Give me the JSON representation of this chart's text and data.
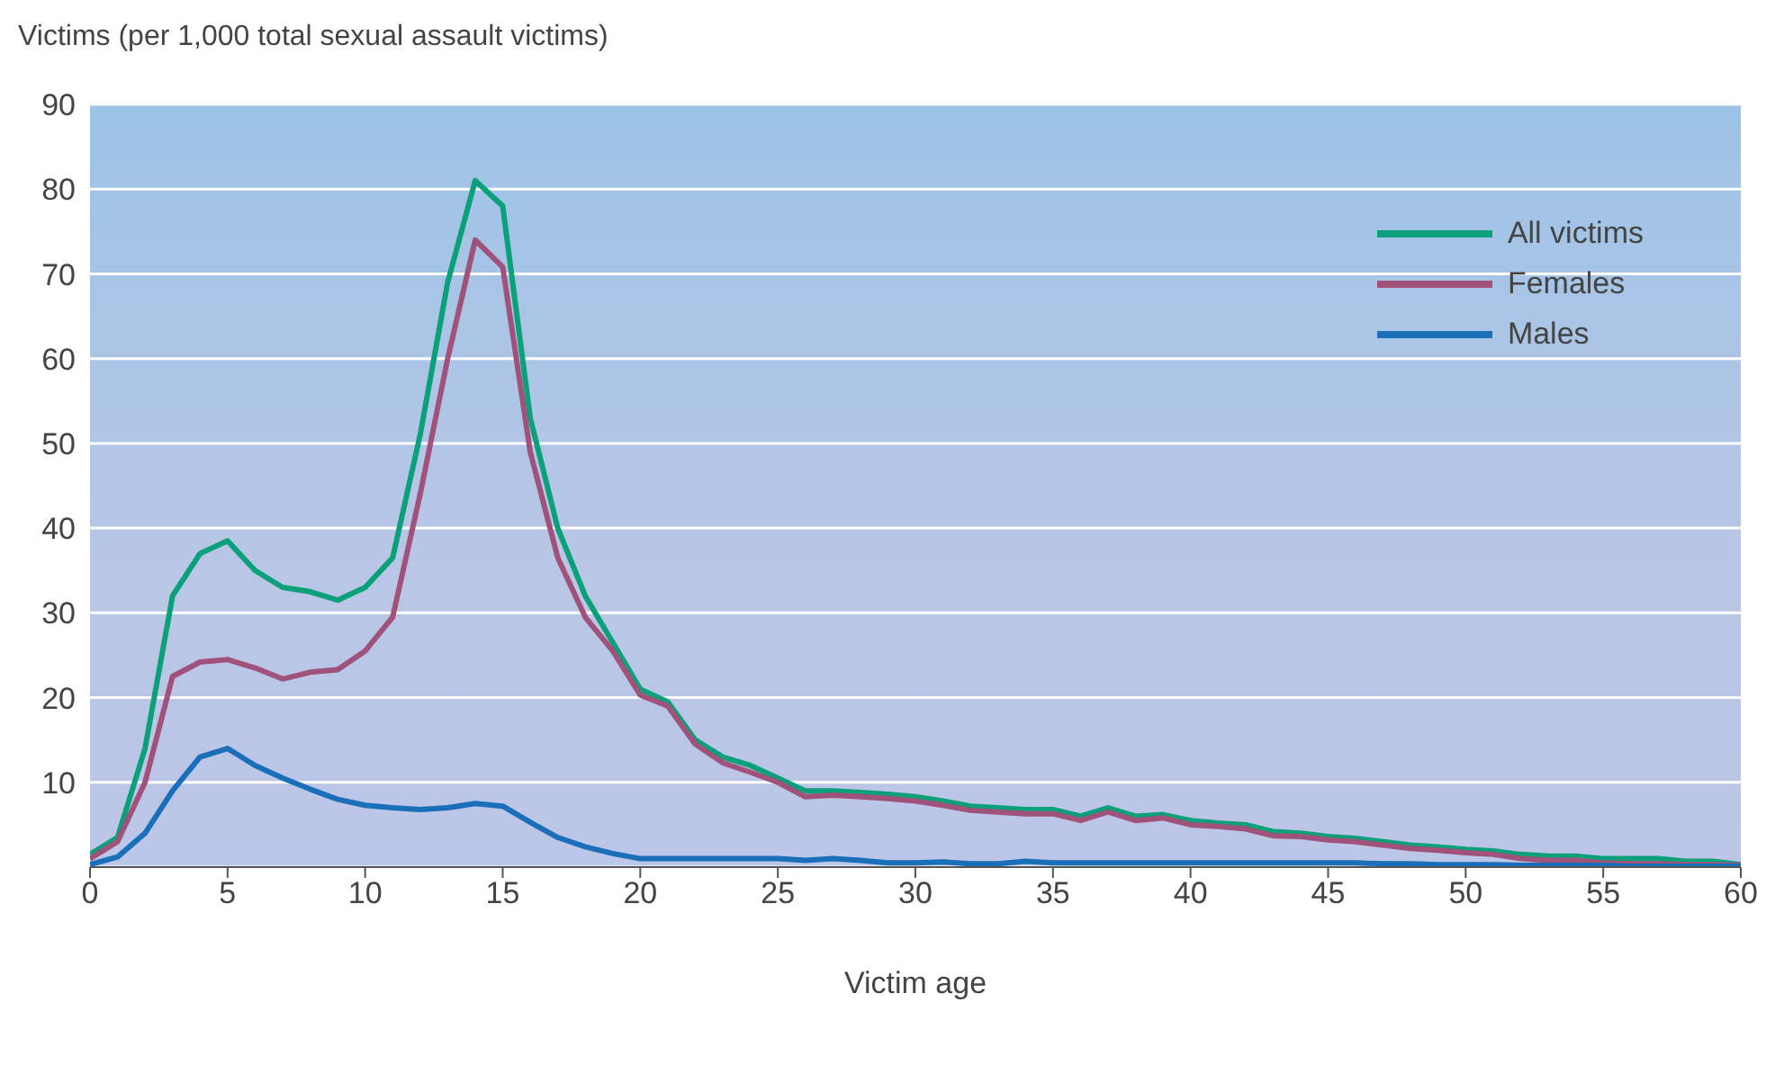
{
  "chart_data": {
    "type": "line",
    "ylabel": "Victims (per 1,000 total sexual assault victims)",
    "xlabel": "Victim age",
    "x": [
      0,
      1,
      2,
      3,
      4,
      5,
      6,
      7,
      8,
      9,
      10,
      11,
      12,
      13,
      14,
      15,
      16,
      17,
      18,
      19,
      20,
      21,
      22,
      23,
      24,
      25,
      26,
      27,
      28,
      29,
      30,
      31,
      32,
      33,
      34,
      35,
      36,
      37,
      38,
      39,
      40,
      41,
      42,
      43,
      44,
      45,
      46,
      47,
      48,
      49,
      50,
      51,
      52,
      53,
      54,
      55,
      56,
      57,
      58,
      59,
      60
    ],
    "series": [
      {
        "name": "All victims",
        "color": "#0aa07a",
        "values": [
          1.5,
          3.5,
          14,
          32,
          37,
          38.5,
          35,
          33,
          32.5,
          31.5,
          33,
          36.5,
          51,
          69,
          81,
          78,
          53,
          40,
          32,
          26.5,
          21,
          19.5,
          15,
          13,
          12,
          10.5,
          9,
          9,
          8.8,
          8.6,
          8.3,
          7.8,
          7.2,
          7,
          6.8,
          6.8,
          6,
          7,
          6,
          6.2,
          5.5,
          5.2,
          5,
          4.2,
          4,
          3.6,
          3.4,
          3,
          2.6,
          2.4,
          2.1,
          1.9,
          1.5,
          1.3,
          1.3,
          1,
          1,
          1,
          0.7,
          0.7,
          0.3
        ]
      },
      {
        "name": "Females",
        "color": "#a0527a",
        "values": [
          1,
          3,
          10,
          22.5,
          24.2,
          24.5,
          23.5,
          22.2,
          23,
          23.3,
          25.5,
          29.5,
          44,
          60,
          74,
          70.8,
          49,
          36.5,
          29.5,
          25.5,
          20.3,
          19,
          14.5,
          12.3,
          11.2,
          10,
          8.3,
          8.5,
          8.3,
          8.1,
          7.8,
          7.3,
          6.7,
          6.5,
          6.3,
          6.3,
          5.5,
          6.5,
          5.5,
          5.8,
          5,
          4.8,
          4.5,
          3.7,
          3.6,
          3.2,
          3,
          2.6,
          2.2,
          2,
          1.7,
          1.5,
          1,
          0.8,
          0.8,
          0.5,
          0.4,
          0.4,
          0.3,
          0.3,
          0.2
        ]
      },
      {
        "name": "Males",
        "color": "#1a6fb8",
        "values": [
          0.3,
          1.2,
          4,
          9,
          13,
          14,
          12,
          10.5,
          9.2,
          8,
          7.3,
          7,
          6.8,
          7,
          7.5,
          7.2,
          5.3,
          3.5,
          2.4,
          1.6,
          1,
          1,
          1,
          1,
          1,
          1,
          0.8,
          1,
          0.8,
          0.5,
          0.5,
          0.6,
          0.4,
          0.4,
          0.7,
          0.5,
          0.5,
          0.5,
          0.5,
          0.5,
          0.5,
          0.5,
          0.5,
          0.5,
          0.5,
          0.5,
          0.5,
          0.4,
          0.4,
          0.3,
          0.3,
          0.3,
          0.2,
          0.2,
          0.2,
          0.2,
          0.1,
          0.1,
          0.1,
          0.1,
          0.1
        ]
      }
    ],
    "xlim": [
      0,
      60
    ],
    "xticks": [
      0,
      5,
      10,
      15,
      20,
      25,
      30,
      35,
      40,
      45,
      50,
      55,
      60
    ],
    "ylim": [
      0,
      90
    ],
    "yticks": [
      10,
      20,
      30,
      40,
      50,
      60,
      70,
      80,
      90
    ],
    "grid": "y",
    "legend": "top right",
    "marker": "none",
    "line_style": "solid"
  }
}
